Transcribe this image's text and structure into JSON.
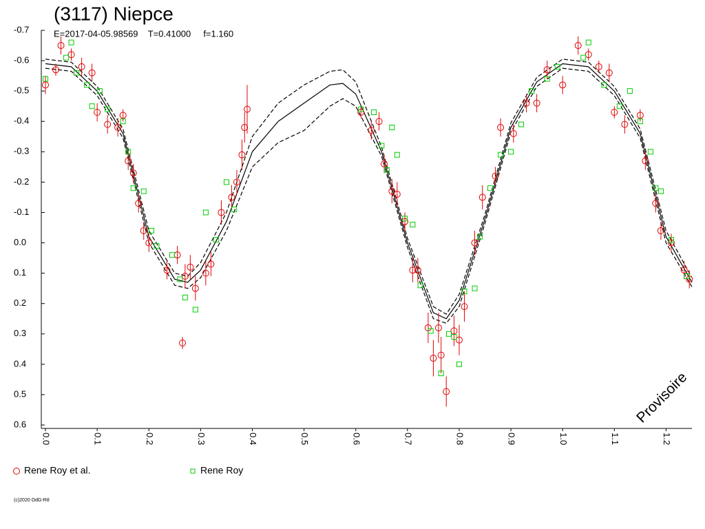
{
  "chart_data": {
    "type": "scatter",
    "title": "(3117) Niepce",
    "subtitle": "E=2017-04-05.98569    T=0.41000     f=1.160",
    "annotation": "Provisoire",
    "footer": "(c)2020 OdG-R8",
    "xlim": [
      -0.008,
      1.25
    ],
    "ylim": [
      -0.7,
      0.6
    ],
    "y_inverted": true,
    "legend": "bottom",
    "xticks": [
      {
        "value": 0,
        "label": "0.0"
      },
      0.1,
      0.2,
      0.3,
      0.4,
      0.5,
      0.6,
      0.7,
      0.8,
      0.9,
      {
        "value": 1,
        "label": "1.0"
      },
      1.1,
      1.2
    ],
    "yticks": [
      -0.7,
      -0.6,
      -0.5,
      -0.4,
      -0.3,
      -0.2,
      -0.1,
      {
        "value": 0,
        "label": "0.0"
      },
      0.1,
      0.2,
      0.3,
      0.4,
      0.5,
      0.6
    ],
    "series": [
      {
        "kind": "line",
        "style": "dashed",
        "color": "#000000",
        "x": [
          0,
          0.05,
          0.1,
          0.15,
          0.2,
          0.25,
          0.275,
          0.3,
          0.35,
          0.4,
          0.45,
          0.5,
          0.55,
          0.575,
          0.6,
          0.65,
          0.7,
          0.75,
          0.775,
          0.8,
          0.85,
          0.9,
          0.95,
          1.0,
          1.05,
          1.1,
          1.15,
          1.2,
          1.25
        ],
        "values": [
          -0.605,
          -0.595,
          -0.515,
          -0.375,
          -0.04,
          0.1,
          0.11,
          0.065,
          -0.1,
          -0.35,
          -0.46,
          -0.52,
          -0.565,
          -0.57,
          -0.53,
          -0.315,
          -0.015,
          0.21,
          0.235,
          0.17,
          -0.095,
          -0.395,
          -0.545,
          -0.605,
          -0.595,
          -0.515,
          -0.375,
          -0.04,
          0.115
        ]
      },
      {
        "kind": "line",
        "style": "solid",
        "color": "#000000",
        "x": [
          0,
          0.05,
          0.1,
          0.15,
          0.2,
          0.25,
          0.275,
          0.3,
          0.35,
          0.4,
          0.45,
          0.5,
          0.55,
          0.575,
          0.6,
          0.65,
          0.7,
          0.75,
          0.775,
          0.8,
          0.85,
          0.9,
          0.95,
          1.0,
          1.05,
          1.1,
          1.15,
          1.2,
          1.25
        ],
        "values": [
          -0.59,
          -0.58,
          -0.5,
          -0.36,
          -0.02,
          0.12,
          0.13,
          0.09,
          -0.07,
          -0.3,
          -0.4,
          -0.46,
          -0.52,
          -0.525,
          -0.49,
          -0.3,
          0.0,
          0.23,
          0.25,
          0.19,
          -0.08,
          -0.38,
          -0.53,
          -0.59,
          -0.58,
          -0.5,
          -0.36,
          -0.02,
          0.13
        ]
      },
      {
        "kind": "line",
        "style": "dashed",
        "color": "#000000",
        "x": [
          0,
          0.05,
          0.1,
          0.15,
          0.2,
          0.25,
          0.275,
          0.3,
          0.35,
          0.4,
          0.45,
          0.5,
          0.55,
          0.575,
          0.6,
          0.65,
          0.7,
          0.75,
          0.775,
          0.8,
          0.85,
          0.9,
          0.95,
          1.0,
          1.05,
          1.1,
          1.15,
          1.2,
          1.25
        ],
        "values": [
          -0.575,
          -0.565,
          -0.485,
          -0.345,
          0.0,
          0.14,
          0.15,
          0.115,
          -0.04,
          -0.25,
          -0.33,
          -0.37,
          -0.45,
          -0.475,
          -0.45,
          -0.285,
          0.015,
          0.25,
          0.265,
          0.21,
          -0.065,
          -0.365,
          -0.515,
          -0.575,
          -0.565,
          -0.485,
          -0.345,
          0.0,
          0.145
        ]
      },
      {
        "kind": "scatter",
        "marker": "circle",
        "name": "Rene Roy et al.",
        "color": "#e00000",
        "x": [
          0.0,
          0.02,
          0.03,
          0.05,
          0.07,
          0.09,
          0.1,
          0.12,
          0.14,
          0.15,
          0.16,
          0.17,
          0.18,
          0.19,
          0.2,
          0.235,
          0.255,
          0.265,
          0.27,
          0.28,
          0.29,
          0.31,
          0.32,
          0.34,
          0.36,
          0.37,
          0.38,
          0.385,
          0.39,
          0.61,
          0.63,
          0.645,
          0.655,
          0.67,
          0.68,
          0.695,
          0.71,
          0.72,
          0.74,
          0.75,
          0.76,
          0.765,
          0.775,
          0.79,
          0.8,
          0.81,
          0.83,
          0.845,
          0.87,
          0.88,
          0.905,
          0.93,
          0.95,
          0.97,
          1.0,
          1.03,
          1.05,
          1.07,
          1.09,
          1.1,
          1.12,
          1.15,
          1.16,
          1.18,
          1.19,
          1.21,
          1.235,
          1.245
        ],
        "values": [
          -0.52,
          -0.57,
          -0.65,
          -0.62,
          -0.58,
          -0.56,
          -0.43,
          -0.39,
          -0.38,
          -0.42,
          -0.27,
          -0.23,
          -0.13,
          -0.04,
          0.0,
          0.09,
          0.04,
          0.33,
          0.11,
          0.08,
          0.15,
          0.1,
          0.07,
          -0.1,
          -0.15,
          -0.2,
          -0.29,
          -0.38,
          -0.44,
          -0.43,
          -0.37,
          -0.4,
          -0.26,
          -0.17,
          -0.16,
          -0.07,
          0.09,
          0.09,
          0.28,
          0.38,
          0.28,
          0.37,
          0.49,
          0.29,
          0.32,
          0.21,
          0.0,
          -0.15,
          -0.22,
          -0.38,
          -0.36,
          -0.46,
          -0.46,
          -0.57,
          -0.52,
          -0.65,
          -0.62,
          -0.58,
          -0.56,
          -0.43,
          -0.39,
          -0.42,
          -0.27,
          -0.13,
          -0.04,
          0.0,
          0.09,
          0.12
        ],
        "errors": [
          0.03,
          0.02,
          0.03,
          0.02,
          0.03,
          0.03,
          0.03,
          0.03,
          0.03,
          0.02,
          0.03,
          0.03,
          0.03,
          0.03,
          0.03,
          0.03,
          0.03,
          0.02,
          0.04,
          0.04,
          0.04,
          0.04,
          0.04,
          0.04,
          0.04,
          0.04,
          0.05,
          0.05,
          0.08,
          0.02,
          0.03,
          0.03,
          0.03,
          0.04,
          0.04,
          0.03,
          0.04,
          0.04,
          0.05,
          0.06,
          0.05,
          0.06,
          0.05,
          0.05,
          0.05,
          0.05,
          0.04,
          0.04,
          0.03,
          0.03,
          0.03,
          0.03,
          0.03,
          0.03,
          0.03,
          0.03,
          0.02,
          0.02,
          0.03,
          0.02,
          0.03,
          0.02,
          0.03,
          0.03,
          0.03,
          0.03,
          0.03,
          0.03
        ]
      },
      {
        "kind": "scatter",
        "marker": "square",
        "name": "Rene Roy",
        "color": "#00cc00",
        "x": [
          0.0,
          0.04,
          0.05,
          0.06,
          0.08,
          0.09,
          0.105,
          0.12,
          0.15,
          0.16,
          0.17,
          0.19,
          0.205,
          0.215,
          0.245,
          0.26,
          0.27,
          0.29,
          0.31,
          0.33,
          0.35,
          0.365,
          0.61,
          0.635,
          0.65,
          0.66,
          0.67,
          0.68,
          0.695,
          0.71,
          0.725,
          0.745,
          0.765,
          0.78,
          0.79,
          0.8,
          0.81,
          0.83,
          0.84,
          0.86,
          0.88,
          0.9,
          0.92,
          0.94,
          0.97,
          0.99,
          1.04,
          1.05,
          1.08,
          1.11,
          1.13,
          1.15,
          1.17,
          1.18,
          1.19,
          1.21,
          1.24
        ],
        "values": [
          -0.54,
          -0.61,
          -0.66,
          -0.56,
          -0.52,
          -0.45,
          -0.5,
          -0.44,
          -0.4,
          -0.3,
          -0.18,
          -0.17,
          -0.04,
          0.01,
          0.04,
          0.12,
          0.18,
          0.22,
          -0.1,
          -0.01,
          -0.2,
          -0.11,
          -0.44,
          -0.43,
          -0.32,
          -0.24,
          -0.38,
          -0.29,
          -0.08,
          -0.06,
          0.14,
          0.29,
          0.43,
          0.3,
          0.31,
          0.4,
          0.16,
          0.15,
          -0.02,
          -0.18,
          -0.29,
          -0.3,
          -0.39,
          -0.5,
          -0.54,
          -0.58,
          -0.61,
          -0.66,
          -0.52,
          -0.45,
          -0.5,
          -0.4,
          -0.3,
          -0.18,
          -0.17,
          -0.01,
          0.11
        ]
      }
    ]
  }
}
